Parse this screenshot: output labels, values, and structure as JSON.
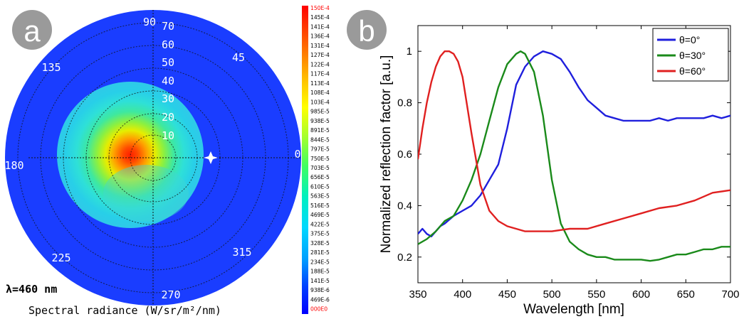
{
  "panel_a": {
    "badge": "a",
    "angle_labels": [
      "90",
      "45",
      "0",
      "315",
      "270",
      "225",
      "180",
      "135"
    ],
    "radius_labels": [
      "70",
      "60",
      "50",
      "40",
      "30",
      "20",
      "10"
    ],
    "wavelength_label": "λ=460 nm",
    "caption": "Spectral radiance (W/sr/m²/nm)",
    "colorbar_labels": [
      "150E-4",
      "145E-4",
      "141E-4",
      "136E-4",
      "131E-4",
      "127E-4",
      "122E-4",
      "117E-4",
      "113E-4",
      "108E-4",
      "103E-4",
      "985E-5",
      "938E-5",
      "891E-5",
      "844E-5",
      "797E-5",
      "750E-5",
      "703E-5",
      "656E-5",
      "610E-5",
      "563E-5",
      "516E-5",
      "469E-5",
      "422E-5",
      "375E-5",
      "328E-5",
      "281E-5",
      "234E-5",
      "188E-5",
      "141E-5",
      "938E-6",
      "469E-6",
      "000E0"
    ],
    "colorbar_label_colors": {
      "top": "#ff0000",
      "bottom": "#ff0000",
      "default": "#000000"
    },
    "background_color": "#1a3dff",
    "marker_color": "#ffffff"
  },
  "chart_data": {
    "type": "line",
    "badge": "b",
    "xlabel": "Wavelength [nm]",
    "ylabel": "Normalized reflection factor [a.u.]",
    "xlim": [
      350,
      700
    ],
    "ylim": [
      0.1,
      1.1
    ],
    "xticks": [
      "350",
      "400",
      "450",
      "500",
      "550",
      "600",
      "650",
      "700"
    ],
    "yticks": [
      "0.2",
      "0.4",
      "0.6",
      "0.8",
      "1"
    ],
    "grid": false,
    "legend_position": "top-right",
    "series": [
      {
        "name": "θ=0°",
        "color": "#1f1fdd",
        "x": [
          350,
          355,
          360,
          365,
          370,
          375,
          380,
          390,
          400,
          410,
          420,
          430,
          440,
          450,
          460,
          470,
          480,
          490,
          500,
          510,
          520,
          530,
          540,
          550,
          560,
          570,
          580,
          590,
          600,
          610,
          620,
          630,
          640,
          650,
          660,
          670,
          680,
          690,
          700
        ],
        "y": [
          0.29,
          0.31,
          0.29,
          0.28,
          0.3,
          0.32,
          0.33,
          0.36,
          0.38,
          0.4,
          0.44,
          0.5,
          0.56,
          0.7,
          0.87,
          0.94,
          0.98,
          1.0,
          0.99,
          0.97,
          0.92,
          0.86,
          0.81,
          0.78,
          0.75,
          0.74,
          0.73,
          0.73,
          0.73,
          0.73,
          0.74,
          0.73,
          0.74,
          0.74,
          0.74,
          0.74,
          0.75,
          0.74,
          0.75
        ]
      },
      {
        "name": "θ=30°",
        "color": "#1a8a1a",
        "x": [
          350,
          360,
          370,
          380,
          390,
          400,
          410,
          420,
          430,
          440,
          450,
          460,
          465,
          470,
          480,
          490,
          500,
          510,
          520,
          530,
          540,
          550,
          560,
          570,
          580,
          590,
          600,
          610,
          620,
          630,
          640,
          650,
          660,
          670,
          680,
          690,
          700
        ],
        "y": [
          0.25,
          0.27,
          0.3,
          0.34,
          0.36,
          0.42,
          0.5,
          0.6,
          0.73,
          0.86,
          0.95,
          0.99,
          1.0,
          0.99,
          0.92,
          0.75,
          0.5,
          0.33,
          0.26,
          0.23,
          0.21,
          0.2,
          0.2,
          0.19,
          0.19,
          0.19,
          0.19,
          0.185,
          0.19,
          0.2,
          0.21,
          0.21,
          0.22,
          0.23,
          0.23,
          0.24,
          0.24
        ]
      },
      {
        "name": "θ=60°",
        "color": "#e02020",
        "x": [
          350,
          355,
          360,
          365,
          370,
          375,
          380,
          385,
          390,
          395,
          400,
          410,
          420,
          430,
          440,
          450,
          460,
          470,
          480,
          490,
          500,
          520,
          540,
          560,
          580,
          600,
          620,
          640,
          660,
          680,
          700
        ],
        "y": [
          0.58,
          0.7,
          0.8,
          0.88,
          0.94,
          0.98,
          1.0,
          1.0,
          0.99,
          0.96,
          0.9,
          0.68,
          0.48,
          0.38,
          0.34,
          0.32,
          0.31,
          0.3,
          0.3,
          0.3,
          0.3,
          0.31,
          0.31,
          0.33,
          0.35,
          0.37,
          0.39,
          0.4,
          0.42,
          0.45,
          0.46
        ]
      }
    ]
  }
}
